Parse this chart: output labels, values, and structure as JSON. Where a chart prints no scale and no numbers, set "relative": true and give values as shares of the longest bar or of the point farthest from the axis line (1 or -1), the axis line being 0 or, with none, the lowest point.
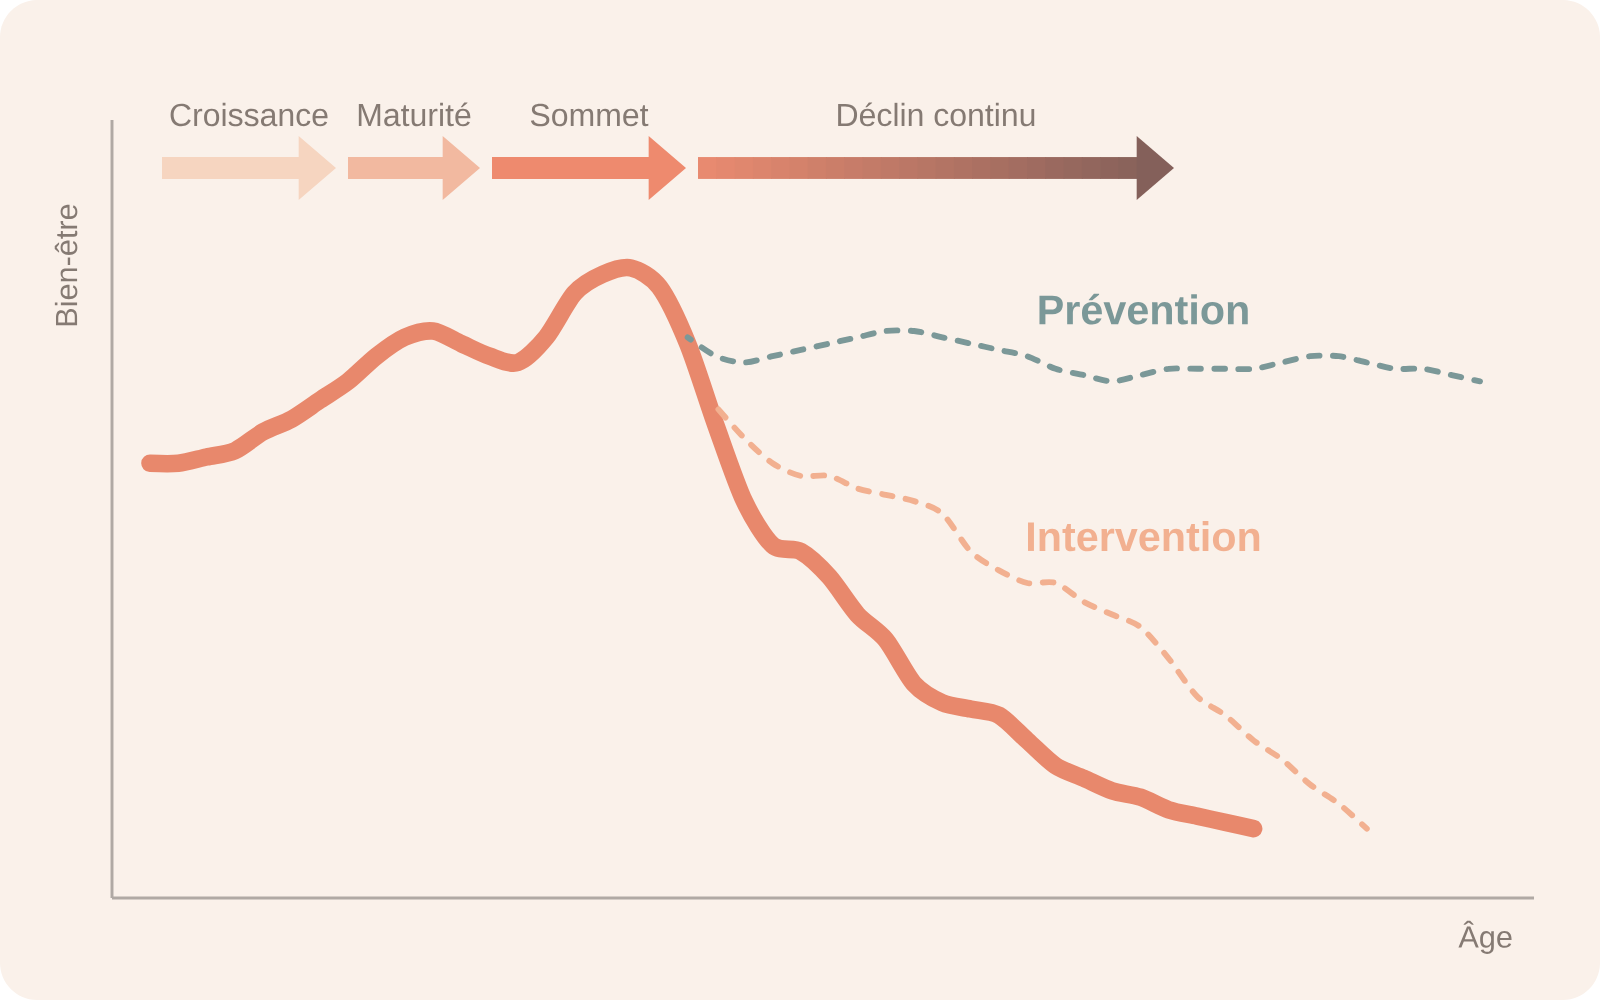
{
  "chart_data": {
    "type": "line",
    "relative": true,
    "xlabel": "Âge",
    "ylabel": "Bien-être",
    "annotations": [
      "Croissance",
      "Maturité",
      "Sommet",
      "Déclin continu"
    ],
    "categories": [
      null,
      null,
      null,
      null,
      null,
      null,
      null,
      null,
      null,
      null,
      null,
      null,
      null,
      null,
      null,
      null,
      null,
      null,
      null,
      null,
      null,
      null,
      null,
      null,
      null,
      null,
      null,
      null,
      null,
      null,
      null,
      null,
      null,
      null,
      null,
      null,
      null,
      null,
      null,
      null,
      null,
      null,
      null,
      null,
      null,
      null,
      null,
      null
    ],
    "series": [
      {
        "color": "#e8886c",
        "line_style": "solid",
        "values": [
          0.69,
          0.69,
          0.7,
          0.71,
          0.74,
          0.76,
          0.79,
          0.82,
          0.86,
          0.89,
          0.9,
          0.88,
          0.86,
          0.85,
          0.89,
          0.96,
          0.99,
          1.0,
          0.97,
          0.88,
          0.75,
          0.63,
          0.56,
          0.55,
          0.51,
          0.45,
          0.41,
          0.34,
          0.31,
          0.3,
          0.29,
          0.25,
          0.21,
          0.19,
          0.17,
          0.16,
          0.14,
          0.13,
          0.12,
          0.11,
          null,
          null,
          null,
          null,
          null,
          null,
          null,
          null
        ]
      },
      {
        "name": "Prévention",
        "color": "#7b9898",
        "line_style": "dashed",
        "values": [
          null,
          null,
          null,
          null,
          null,
          null,
          null,
          null,
          null,
          null,
          null,
          null,
          null,
          null,
          null,
          null,
          null,
          null,
          null,
          0.89,
          0.86,
          0.85,
          0.86,
          0.87,
          0.88,
          0.89,
          0.9,
          0.9,
          0.89,
          0.88,
          0.87,
          0.86,
          0.84,
          0.83,
          0.82,
          0.83,
          0.84,
          0.84,
          0.84,
          0.84,
          0.85,
          0.86,
          0.86,
          0.85,
          0.84,
          0.84,
          0.83,
          0.82
        ]
      },
      {
        "name": "Intervention",
        "color": "#f2b090",
        "line_style": "dashed",
        "values": [
          null,
          null,
          null,
          null,
          null,
          null,
          null,
          null,
          null,
          null,
          null,
          null,
          null,
          null,
          null,
          null,
          null,
          null,
          null,
          null,
          0.78,
          0.73,
          0.69,
          0.67,
          0.67,
          0.65,
          0.64,
          0.63,
          0.61,
          0.55,
          0.52,
          0.5,
          0.5,
          0.47,
          0.45,
          0.43,
          0.38,
          0.32,
          0.29,
          0.25,
          0.22,
          0.18,
          0.15,
          0.11,
          null,
          null,
          null,
          null
        ]
      }
    ]
  }
}
